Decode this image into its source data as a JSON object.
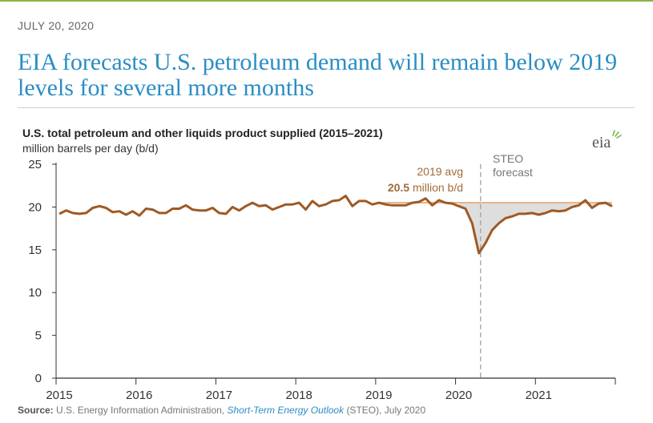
{
  "header": {
    "date": "JULY 20, 2020",
    "headline": "EIA forecasts U.S. petroleum demand will remain below 2019 levels for several more months"
  },
  "logo": {
    "text": "eia",
    "icon": "eia-logo-icon"
  },
  "footer": {
    "source_label": "Source:",
    "source_org": "U.S. Energy Information Administration,",
    "source_link": "Short-Term Energy Outlook",
    "source_tail": "(STEO), July 2020"
  },
  "colors": {
    "series": "#9e5a25",
    "avg_line": "#e8b48a",
    "gap_fill": "#d0d0d0",
    "forecast_line": "#999999",
    "annotation": "#a06a3c",
    "headline": "#2a8dc5"
  },
  "chart_data": {
    "type": "line",
    "title": "U.S. total petroleum and other liquids product supplied (2015–2021)",
    "ylabel": "million barrels per day (b/d)",
    "ylim": [
      0,
      25
    ],
    "yticks": [
      "0",
      "5",
      "10",
      "15",
      "20",
      "25"
    ],
    "xticks": [
      "2015",
      "2016",
      "2017",
      "2018",
      "2019",
      "2020",
      "2021"
    ],
    "x_range": [
      "2015-01",
      "2021-12"
    ],
    "grid": false,
    "annotations": {
      "avg_label_line1": "2019 avg",
      "avg_value": "20.5",
      "avg_unit": "million b/d",
      "forecast_line1": "STEO",
      "forecast_line2": "forecast"
    },
    "reference_line": {
      "name": "2019 avg",
      "y": 20.5
    },
    "forecast_start": "2020-05",
    "series": [
      {
        "values": [
          19.2,
          19.6,
          19.3,
          19.2,
          19.3,
          19.9,
          20.1,
          19.9,
          19.4,
          19.5,
          19.1,
          19.5,
          19.0,
          19.8,
          19.7,
          19.3,
          19.3,
          19.8,
          19.8,
          20.2,
          19.7,
          19.6,
          19.6,
          19.9,
          19.3,
          19.2,
          20.0,
          19.6,
          20.1,
          20.5,
          20.1,
          20.2,
          19.7,
          20.0,
          20.3,
          20.3,
          20.5,
          19.7,
          20.7,
          20.1,
          20.3,
          20.7,
          20.8,
          21.3,
          20.1,
          20.7,
          20.7,
          20.3,
          20.5,
          20.3,
          20.2,
          20.2,
          20.2,
          20.5,
          20.6,
          21.0,
          20.2,
          20.8,
          20.5,
          20.4,
          20.1,
          19.8,
          18.1,
          14.6,
          15.8,
          17.3,
          18.1,
          18.7,
          18.9,
          19.2,
          19.2,
          19.3,
          19.1,
          19.3,
          19.6,
          19.5,
          19.6,
          20.0,
          20.2,
          20.8,
          19.9,
          20.4,
          20.5,
          20.1
        ]
      }
    ]
  }
}
